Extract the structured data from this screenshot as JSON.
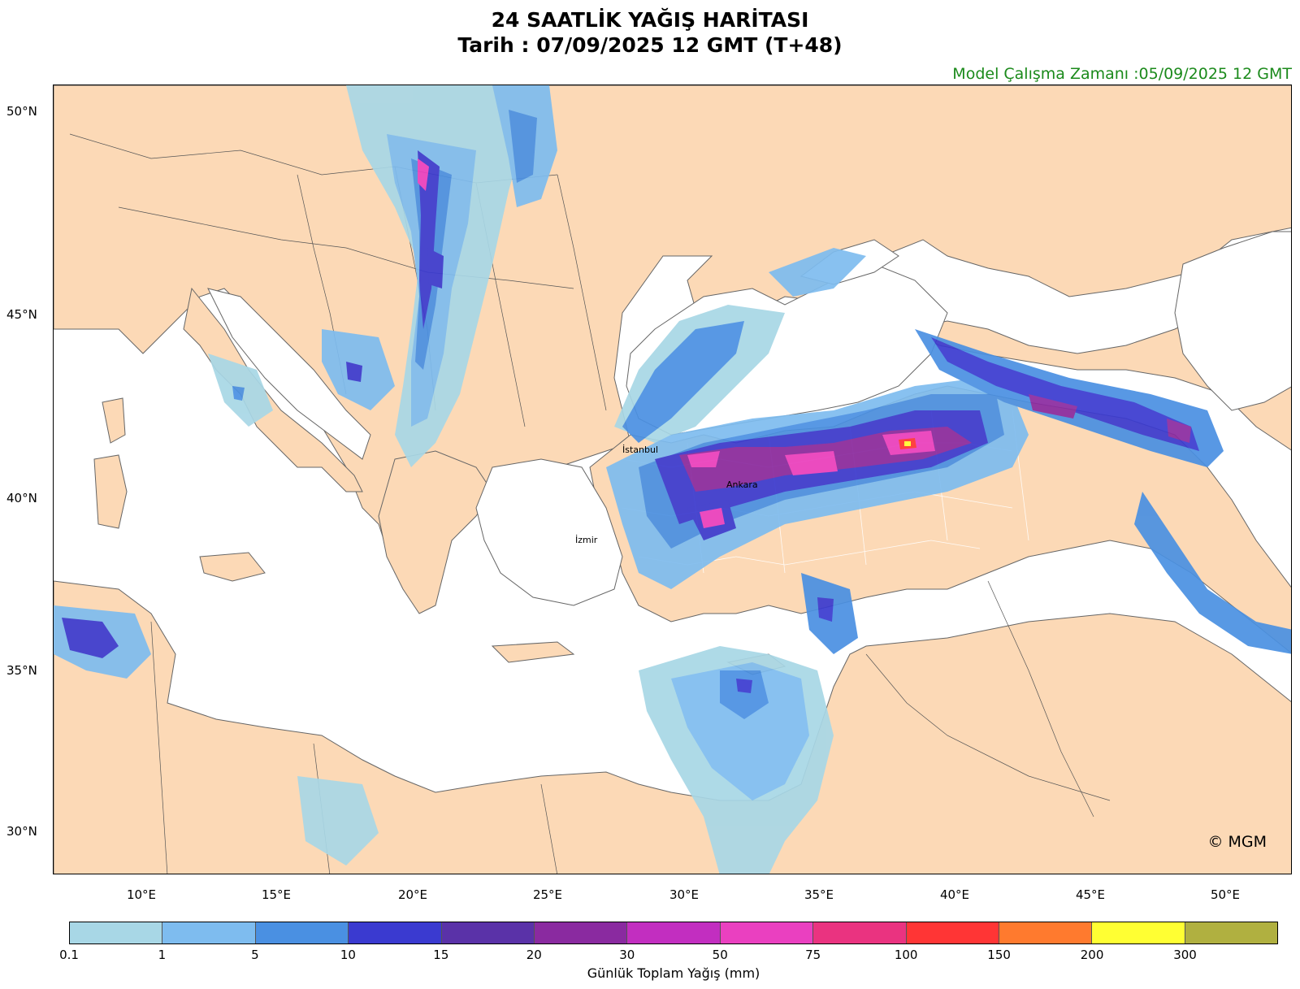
{
  "title": {
    "line1": "24 SAATLİK YAĞIŞ HARİTASI",
    "line2": "Tarih : 07/09/2025  12 GMT (T+48)"
  },
  "run_time": "Model Çalışma Zamanı :05/09/2025  12 GMT",
  "latitude_ticks": [
    "50°N",
    "45°N",
    "40°N",
    "35°N",
    "30°N"
  ],
  "longitude_ticks": [
    "10°E",
    "15°E",
    "20°E",
    "25°E",
    "30°E",
    "35°E",
    "40°E",
    "45°E",
    "50°E"
  ],
  "cities": [
    "İstanbul",
    "Ankara",
    "İzmir"
  ],
  "copyright": "© MGM",
  "colors": {
    "land": "#fcd9b6",
    "sea": "#ffffff",
    "border": "#555555"
  },
  "colorbar": {
    "title": "Günlük Toplam Yağış (mm)",
    "labels": [
      "0.1",
      "1",
      "5",
      "10",
      "15",
      "20",
      "30",
      "50",
      "75",
      "100",
      "150",
      "200",
      "300"
    ],
    "colors": [
      "#a8d7e6",
      "#7ebcef",
      "#4a90e2",
      "#3a3ad0",
      "#5a32a8",
      "#8a2aa0",
      "#c22ec0",
      "#ea40c0",
      "#ea3380",
      "#ff3535",
      "#ff7a2e",
      "#ffff33",
      "#b0b040"
    ]
  }
}
